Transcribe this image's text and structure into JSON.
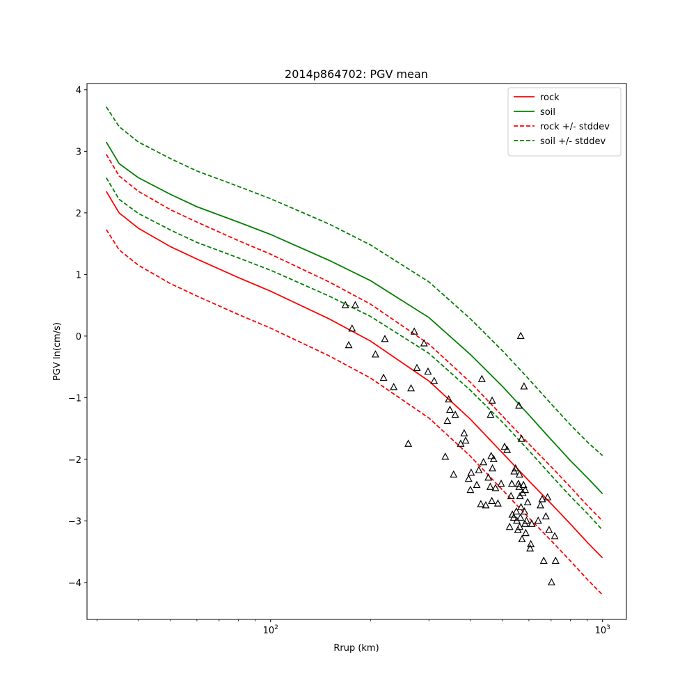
{
  "chart_data": {
    "type": "line",
    "title": "2014p864702: PGV mean",
    "xlabel": "Rrup (km)",
    "ylabel": "PGV ln(cm/s)",
    "xscale": "log",
    "xlim": [
      28,
      1180
    ],
    "ylim": [
      -4.6,
      4.1
    ],
    "x_tick_values": [
      100,
      1000
    ],
    "x_tick_labels": [
      {
        "base": "10",
        "exp": "2"
      },
      {
        "base": "10",
        "exp": "3"
      }
    ],
    "y_ticks": [
      4,
      3,
      2,
      1,
      0,
      -1,
      -2,
      -3,
      -4
    ],
    "y_tick_labels": [
      "4",
      "3",
      "2",
      "1",
      "0",
      "−1",
      "−2",
      "−3",
      "−4"
    ],
    "legend_position": "top-right",
    "grid": false,
    "series": [
      {
        "name": "rock",
        "color": "#ff0000",
        "dash": "solid",
        "x": [
          32,
          35,
          40,
          50,
          60,
          80,
          100,
          150,
          200,
          300,
          400,
          500,
          600,
          700,
          800,
          900,
          1000
        ],
        "y": [
          2.35,
          2.0,
          1.75,
          1.45,
          1.25,
          0.95,
          0.73,
          0.28,
          -0.08,
          -0.73,
          -1.35,
          -1.9,
          -2.35,
          -2.72,
          -3.05,
          -3.35,
          -3.6
        ]
      },
      {
        "name": "soil",
        "color": "#008000",
        "dash": "solid",
        "x": [
          32,
          35,
          40,
          50,
          60,
          80,
          100,
          150,
          200,
          300,
          400,
          500,
          600,
          700,
          800,
          900,
          1000
        ],
        "y": [
          3.15,
          2.8,
          2.57,
          2.3,
          2.1,
          1.85,
          1.65,
          1.23,
          0.9,
          0.3,
          -0.3,
          -0.82,
          -1.28,
          -1.68,
          -2.02,
          -2.3,
          -2.56
        ]
      },
      {
        "name": "rock +/- stddev",
        "color": "#ff0000",
        "dash": "dashed",
        "x": [
          32,
          35,
          40,
          50,
          60,
          80,
          100,
          150,
          200,
          300,
          400,
          500,
          600,
          700,
          800,
          900,
          1000
        ],
        "y": [
          2.95,
          2.6,
          2.35,
          2.05,
          1.85,
          1.55,
          1.33,
          0.88,
          0.52,
          -0.13,
          -0.75,
          -1.3,
          -1.75,
          -2.12,
          -2.45,
          -2.75,
          -3.0
        ]
      },
      {
        "name": "",
        "color": "#ff0000",
        "dash": "dashed",
        "x": [
          32,
          35,
          40,
          50,
          60,
          80,
          100,
          150,
          200,
          300,
          400,
          500,
          600,
          700,
          800,
          900,
          1000
        ],
        "y": [
          1.73,
          1.4,
          1.15,
          0.85,
          0.65,
          0.35,
          0.13,
          -0.32,
          -0.68,
          -1.33,
          -1.95,
          -2.5,
          -2.95,
          -3.32,
          -3.65,
          -3.95,
          -4.2
        ]
      },
      {
        "name": "soil +/- stddev",
        "color": "#008000",
        "dash": "dashed",
        "x": [
          32,
          35,
          40,
          50,
          60,
          80,
          100,
          150,
          200,
          300,
          400,
          500,
          600,
          700,
          800,
          900,
          1000
        ],
        "y": [
          3.72,
          3.4,
          3.15,
          2.88,
          2.68,
          2.43,
          2.23,
          1.82,
          1.48,
          0.88,
          0.28,
          -0.24,
          -0.7,
          -1.1,
          -1.44,
          -1.72,
          -1.94
        ]
      },
      {
        "name": "",
        "color": "#008000",
        "dash": "dashed",
        "x": [
          32,
          35,
          40,
          50,
          60,
          80,
          100,
          150,
          200,
          300,
          400,
          500,
          600,
          700,
          800,
          900,
          1000
        ],
        "y": [
          2.57,
          2.22,
          1.99,
          1.72,
          1.52,
          1.27,
          1.07,
          0.65,
          0.32,
          -0.28,
          -0.88,
          -1.4,
          -1.86,
          -2.26,
          -2.6,
          -2.88,
          -3.15
        ]
      }
    ],
    "observations": {
      "marker": "triangle",
      "color": "#000000",
      "points": [
        [
          168,
          0.5
        ],
        [
          172,
          -0.15
        ],
        [
          176,
          0.12
        ],
        [
          180,
          0.5
        ],
        [
          207,
          -0.3
        ],
        [
          219,
          -0.68
        ],
        [
          221,
          -0.05
        ],
        [
          235,
          -0.83
        ],
        [
          260,
          -1.75
        ],
        [
          265,
          -0.85
        ],
        [
          271,
          0.07
        ],
        [
          276,
          -0.52
        ],
        [
          290,
          -0.12
        ],
        [
          298,
          -0.58
        ],
        [
          311,
          -0.73
        ],
        [
          336,
          -1.96
        ],
        [
          341,
          -1.38
        ],
        [
          344,
          -1.03
        ],
        [
          347,
          -1.2
        ],
        [
          356,
          -2.25
        ],
        [
          360,
          -1.28
        ],
        [
          374,
          -1.75
        ],
        [
          383,
          -1.58
        ],
        [
          387,
          -1.7
        ],
        [
          395,
          -2.32
        ],
        [
          400,
          -2.5
        ],
        [
          402,
          -2.22
        ],
        [
          418,
          -2.42
        ],
        [
          424,
          -2.18
        ],
        [
          430,
          -2.73
        ],
        [
          433,
          -0.7
        ],
        [
          438,
          -2.05
        ],
        [
          445,
          -2.75
        ],
        [
          453,
          -2.3
        ],
        [
          459,
          -2.45
        ],
        [
          460,
          -1.28
        ],
        [
          462,
          -1.95
        ],
        [
          464,
          -2.68
        ],
        [
          465,
          -1.05
        ],
        [
          466,
          -2.15
        ],
        [
          470,
          -2.0
        ],
        [
          476,
          -2.47
        ],
        [
          484,
          -2.72
        ],
        [
          495,
          -2.4
        ],
        [
          507,
          -1.8
        ],
        [
          516,
          -1.85
        ],
        [
          525,
          -3.1
        ],
        [
          530,
          -2.6
        ],
        [
          533,
          -2.4
        ],
        [
          535,
          -2.9
        ],
        [
          540,
          -2.95
        ],
        [
          542,
          -2.2
        ],
        [
          547,
          -2.15
        ],
        [
          550,
          -2.85
        ],
        [
          552,
          -3.0
        ],
        [
          556,
          -3.15
        ],
        [
          558,
          -2.4
        ],
        [
          560,
          -1.13
        ],
        [
          561,
          -2.45
        ],
        [
          562,
          -2.25
        ],
        [
          563,
          -3.1
        ],
        [
          564,
          -2.6
        ],
        [
          566,
          -2.95
        ],
        [
          567,
          0.0
        ],
        [
          568,
          -2.78
        ],
        [
          570,
          -1.67
        ],
        [
          572,
          -3.3
        ],
        [
          575,
          -2.55
        ],
        [
          578,
          -2.42
        ],
        [
          580,
          -0.82
        ],
        [
          582,
          -2.85
        ],
        [
          584,
          -3.05
        ],
        [
          585,
          -2.5
        ],
        [
          587,
          -3.2
        ],
        [
          590,
          -3.0
        ],
        [
          595,
          -2.7
        ],
        [
          605,
          -3.45
        ],
        [
          608,
          -3.38
        ],
        [
          612,
          -3.05
        ],
        [
          640,
          -3.0
        ],
        [
          650,
          -2.75
        ],
        [
          658,
          -2.65
        ],
        [
          665,
          -3.65
        ],
        [
          675,
          -2.93
        ],
        [
          683,
          -2.62
        ],
        [
          690,
          -3.15
        ],
        [
          702,
          -4.0
        ],
        [
          718,
          -3.25
        ],
        [
          722,
          -3.65
        ]
      ]
    }
  }
}
